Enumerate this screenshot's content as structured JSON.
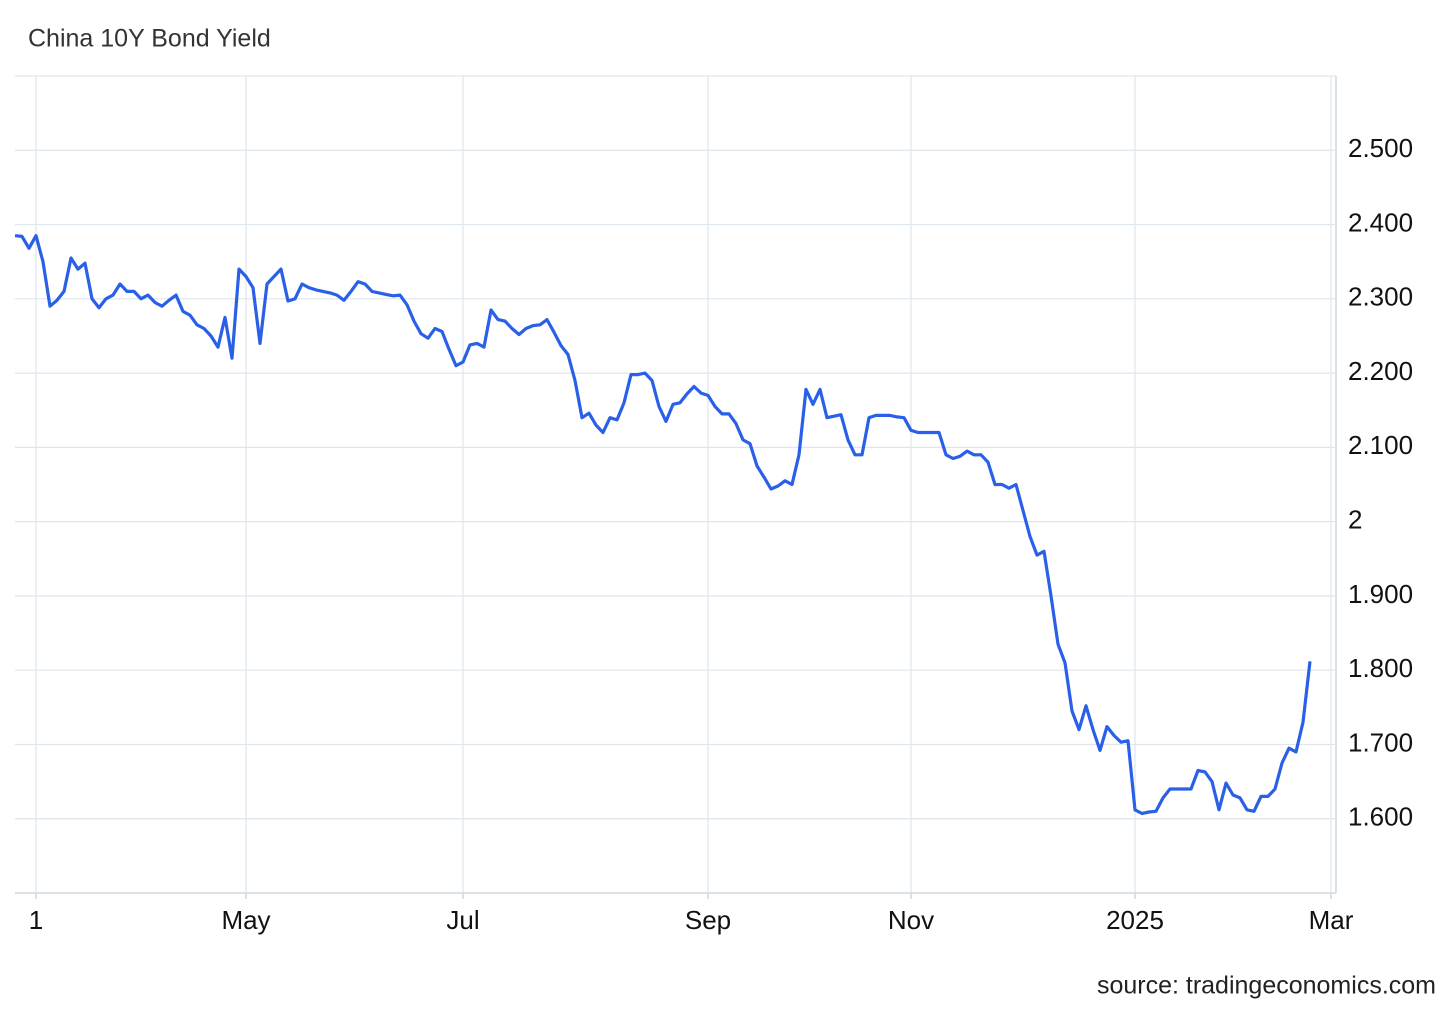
{
  "chart_data": {
    "type": "line",
    "title": "China 10Y Bond Yield",
    "source": "source: tradingeconomics.com",
    "color": "#2a5fe8",
    "grid": true,
    "ylim": [
      1.5,
      2.6
    ],
    "yticks": [
      {
        "value": 1.6,
        "label": "1.600"
      },
      {
        "value": 1.7,
        "label": "1.700"
      },
      {
        "value": 1.8,
        "label": "1.800"
      },
      {
        "value": 1.9,
        "label": "1.900"
      },
      2,
      {
        "value": 2.1,
        "label": "2.100"
      },
      {
        "value": 2.2,
        "label": "2.200"
      },
      {
        "value": 2.3,
        "label": "2.300"
      },
      {
        "value": 2.4,
        "label": "2.400"
      },
      {
        "value": 2.5,
        "label": "2.500"
      }
    ],
    "categories": [
      null,
      null,
      null,
      "1",
      null,
      null,
      null,
      null,
      null,
      null,
      null,
      null,
      null,
      null,
      null,
      null,
      null,
      null,
      null,
      null,
      null,
      null,
      null,
      null,
      null,
      null,
      null,
      null,
      null,
      null,
      null,
      null,
      null,
      "May",
      null,
      null,
      null,
      null,
      null,
      null,
      null,
      null,
      null,
      null,
      null,
      null,
      null,
      null,
      null,
      null,
      null,
      null,
      null,
      null,
      null,
      null,
      null,
      null,
      null,
      null,
      null,
      null,
      null,
      null,
      "Jul",
      null,
      null,
      null,
      null,
      null,
      null,
      null,
      null,
      null,
      null,
      null,
      null,
      null,
      null,
      null,
      null,
      null,
      null,
      null,
      null,
      null,
      null,
      null,
      null,
      null,
      null,
      null,
      null,
      null,
      null,
      null,
      null,
      null,
      null,
      "Sep",
      null,
      null,
      null,
      null,
      null,
      null,
      null,
      null,
      null,
      null,
      null,
      null,
      null,
      null,
      null,
      null,
      null,
      null,
      null,
      null,
      null,
      null,
      null,
      null,
      null,
      null,
      null,
      null,
      "Nov",
      null,
      null,
      null,
      null,
      null,
      null,
      null,
      null,
      null,
      null,
      null,
      null,
      null,
      null,
      null,
      null,
      null,
      null,
      null,
      null,
      null,
      null,
      null,
      null,
      null,
      null,
      null,
      null,
      null,
      null,
      null,
      "2025",
      null,
      null,
      null,
      null,
      null,
      null,
      null,
      null,
      null,
      null,
      null,
      null,
      null,
      null,
      null,
      null,
      null,
      null,
      null,
      null,
      null,
      null,
      null,
      null,
      null,
      null,
      null,
      "Mar"
    ],
    "values": [
      2.385,
      2.384,
      2.368,
      2.385,
      2.35,
      2.29,
      2.298,
      2.31,
      2.355,
      2.34,
      2.348,
      2.3,
      2.288,
      2.3,
      2.305,
      2.32,
      2.31,
      2.31,
      2.3,
      2.305,
      2.295,
      2.29,
      2.298,
      2.305,
      2.283,
      2.278,
      2.265,
      2.26,
      2.25,
      2.235,
      2.275,
      2.22,
      2.34,
      2.33,
      2.315,
      2.24,
      2.32,
      2.33,
      2.34,
      2.297,
      2.3,
      2.32,
      2.315,
      2.312,
      2.31,
      2.308,
      2.305,
      2.298,
      2.31,
      2.323,
      2.32,
      2.31,
      2.308,
      2.306,
      2.304,
      2.305,
      2.292,
      2.27,
      2.253,
      2.247,
      2.26,
      2.256,
      2.232,
      2.21,
      2.215,
      2.238,
      2.24,
      2.235,
      2.285,
      2.272,
      2.27,
      2.26,
      2.252,
      2.26,
      2.264,
      2.265,
      2.272,
      2.255,
      2.237,
      2.225,
      2.19,
      2.14,
      2.146,
      2.13,
      2.12,
      2.14,
      2.137,
      2.16,
      2.198,
      2.198,
      2.2,
      2.19,
      2.155,
      2.135,
      2.158,
      2.16,
      2.172,
      2.182,
      2.173,
      2.17,
      2.155,
      2.145,
      2.145,
      2.132,
      2.11,
      2.105,
      2.075,
      2.06,
      2.044,
      2.048,
      2.055,
      2.05,
      2.09,
      2.178,
      2.158,
      2.178,
      2.14,
      2.142,
      2.144,
      2.11,
      2.09,
      2.09,
      2.14,
      2.143,
      2.143,
      2.143,
      2.141,
      2.14,
      2.123,
      2.12,
      2.12,
      2.12,
      2.12,
      2.09,
      2.085,
      2.088,
      2.095,
      2.09,
      2.09,
      2.08,
      2.05,
      2.05,
      2.045,
      2.05,
      2.015,
      1.98,
      1.955,
      1.96,
      1.9,
      1.835,
      1.81,
      1.745,
      1.72,
      1.752,
      1.72,
      1.692,
      1.724,
      1.712,
      1.703,
      1.705,
      1.612,
      1.607,
      1.609,
      1.61,
      1.628,
      1.64,
      1.64,
      1.64,
      1.64,
      1.665,
      1.663,
      1.65,
      1.612,
      1.648,
      1.632,
      1.628,
      1.612,
      1.61,
      1.63,
      1.63,
      1.64,
      1.675,
      1.695,
      1.69,
      1.73,
      1.812,
      null,
      null,
      null
    ]
  }
}
